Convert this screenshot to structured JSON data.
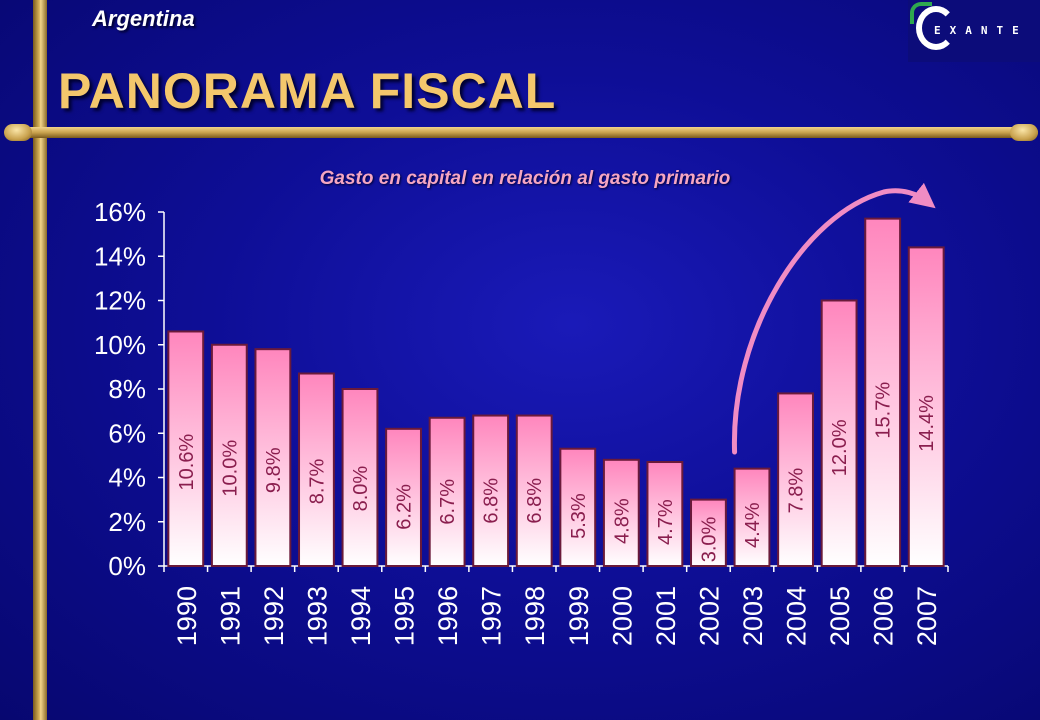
{
  "header": {
    "country": "Argentina",
    "title": "PANORAMA FISCAL",
    "logo_text": "EXANTE"
  },
  "colors": {
    "background": "#0e0e96",
    "title": "#f4c76c",
    "bar_top": "#ff8fc0",
    "bar_bottom": "#ffffff",
    "bar_border": "#6a1a3a",
    "label_text": "#8a1e4e",
    "arrow": "#f08cc4",
    "axis_text": "#ffffff",
    "chart_title": "#f5a6c2"
  },
  "chart_data": {
    "type": "bar",
    "title": "Gasto en capital en relación al gasto primario",
    "xlabel": "",
    "ylabel": "",
    "categories": [
      "1990",
      "1991",
      "1992",
      "1993",
      "1994",
      "1995",
      "1996",
      "1997",
      "1998",
      "1999",
      "2000",
      "2001",
      "2002",
      "2003",
      "2004",
      "2005",
      "2006",
      "2007"
    ],
    "values": [
      10.6,
      10.0,
      9.8,
      8.7,
      8.0,
      6.2,
      6.7,
      6.8,
      6.8,
      5.3,
      4.8,
      4.7,
      3.0,
      4.4,
      7.8,
      12.0,
      15.7,
      14.4
    ],
    "value_labels": [
      "10.6%",
      "10.0%",
      "9.8%",
      "8.7%",
      "8.0%",
      "6.2%",
      "6.7%",
      "6.8%",
      "6.8%",
      "5.3%",
      "4.8%",
      "4.7%",
      "3.0%",
      "4.4%",
      "7.8%",
      "12.0%",
      "15.7%",
      "14.4%"
    ],
    "yticks": [
      "0%",
      "2%",
      "4%",
      "6%",
      "8%",
      "10%",
      "12%",
      "14%",
      "16%"
    ],
    "ylim": [
      0,
      16
    ],
    "grid": false,
    "legend": "none",
    "annotation": "curved arrow rising from 2003 to 2007"
  }
}
